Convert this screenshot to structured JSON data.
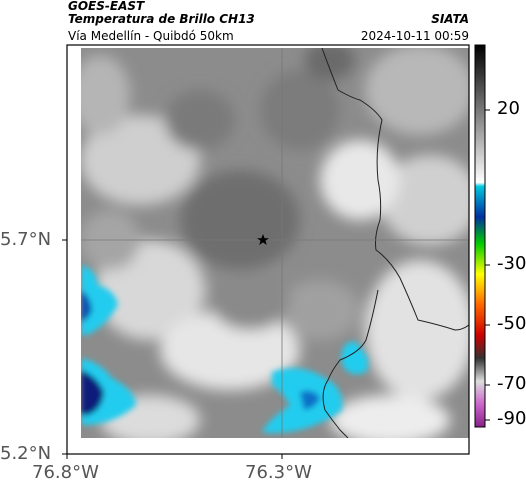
{
  "header": {
    "source": "GOES-EAST",
    "product": "Temperatura de Brillo CH13",
    "region": "Vía Medellín - Quibdó 50km",
    "agency": "SIATA",
    "timestamp": "2024-10-11 00:59"
  },
  "axes": {
    "x_ticks": [
      "76.8°W",
      "76.3°W"
    ],
    "y_ticks": [
      "5.7°N",
      "5.2°N"
    ]
  },
  "colorbar": {
    "labels": [
      "20",
      "-30",
      "-50",
      "-70",
      "-90"
    ],
    "values": [
      20,
      -30,
      -50,
      -70,
      -90
    ]
  },
  "map": {
    "marker": "star-icon",
    "colors": {
      "cold_cloud": "#22ccee",
      "very_cold_cloud": "#0a1a7a",
      "mid_gray": "#9a9a9a",
      "border_line": "#222222"
    }
  }
}
